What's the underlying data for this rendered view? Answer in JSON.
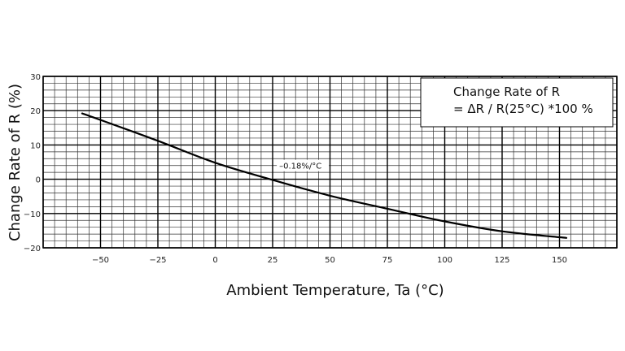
{
  "chart_data": {
    "type": "line",
    "title": "",
    "xlabel": "Ambient Temperature,  Ta  (°C)",
    "ylabel": "Change  Rate  of  R  (%)",
    "xlim": [
      -75,
      175
    ],
    "ylim": [
      -20,
      30
    ],
    "grid": true,
    "x_ticks": [
      "-50",
      "-25",
      "0",
      "25",
      "50",
      "75",
      "100",
      "125",
      "150"
    ],
    "y_ticks": [
      "30",
      "20",
      "10",
      "0",
      "-10",
      "-20"
    ],
    "legend_box": {
      "line1": "Change Rate of R",
      "line2": "= ΔR  / R(25°C)  *100 %",
      "placement": "top-right"
    },
    "annotation": {
      "text": "–0.18%/°C",
      "x": 30,
      "y": 4
    },
    "series": [
      {
        "x": [
          -58,
          -50,
          -25,
          0,
          25,
          50,
          75,
          100,
          125,
          153
        ],
        "values": [
          19.2,
          17.3,
          11.2,
          4.8,
          -0.2,
          -4.8,
          -8.6,
          -12.3,
          -15.2,
          -17.1
        ]
      }
    ]
  }
}
